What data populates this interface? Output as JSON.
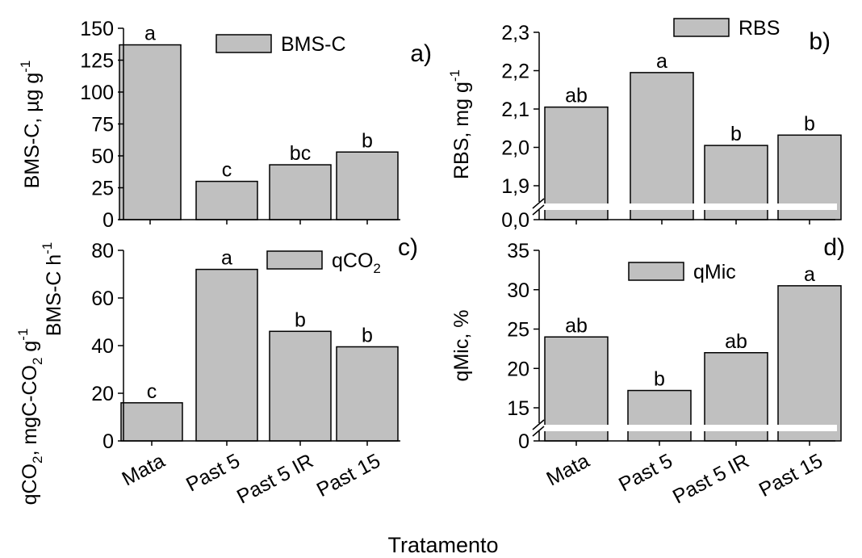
{
  "figure": {
    "xlabel": "Tratamento"
  },
  "chart_data": [
    {
      "type": "bar",
      "panel": "a)",
      "categories": [
        "Mata",
        "Past 5",
        "Past 5 IR",
        "Past 15"
      ],
      "series": [
        {
          "name": "BMS-C",
          "values": [
            137,
            30,
            43,
            53
          ]
        }
      ],
      "letters": [
        "a",
        "c",
        "bc",
        "b"
      ],
      "ylabel": {
        "base": "BMS-C, µg g",
        "sup": "-1"
      },
      "yticks": [
        "0",
        "25",
        "50",
        "75",
        "100",
        "125",
        "150"
      ],
      "ylim": [
        0,
        150
      ],
      "legend_position": "top-right",
      "grid": false
    },
    {
      "type": "bar",
      "panel": "b)",
      "categories": [
        "Mata",
        "Past 5",
        "Past 5 IR",
        "Past 15"
      ],
      "series": [
        {
          "name": "RBS",
          "values": [
            2.105,
            2.195,
            2.005,
            2.032
          ]
        }
      ],
      "letters": [
        "ab",
        "a",
        "b",
        "b"
      ],
      "ylabel": {
        "base": "RBS, mg g",
        "sup": "-1"
      },
      "yticks": [
        "1,9",
        "2,0",
        "2,1",
        "2,2",
        "2,3"
      ],
      "ybreak_label": "0,0",
      "ylim": [
        1.85,
        2.3
      ],
      "legend_position": "top-right",
      "grid": false
    },
    {
      "type": "bar",
      "panel": "c)",
      "categories": [
        "Mata",
        "Past 5",
        "Past 5 IR",
        "Past 15"
      ],
      "series": [
        {
          "name": "qCO₂",
          "values": [
            16,
            72,
            46,
            39.5
          ]
        }
      ],
      "letters": [
        "c",
        "a",
        "b",
        "b"
      ],
      "ylabel": {
        "line1": "BMS-C h",
        "line1_sup": "-1",
        "line2": "qCO₂, mgC-CO₂ g",
        "line2_sup": "-1"
      },
      "yticks": [
        "0",
        "20",
        "40",
        "60",
        "80"
      ],
      "ylim": [
        0,
        80
      ],
      "legend_position": "top-right",
      "grid": false
    },
    {
      "type": "bar",
      "panel": "d)",
      "categories": [
        "Mata",
        "Past 5",
        "Past 5 IR",
        "Past 15"
      ],
      "series": [
        {
          "name": "qMic",
          "values": [
            24,
            17.2,
            22,
            30.5
          ]
        }
      ],
      "letters": [
        "ab",
        "b",
        "ab",
        "a"
      ],
      "ylabel": {
        "base": "qMic, %"
      },
      "yticks": [
        "15",
        "20",
        "25",
        "30",
        "35"
      ],
      "ybreak_label": "0",
      "ylim": [
        12,
        35
      ],
      "legend_position": "top-right",
      "grid": false
    }
  ]
}
